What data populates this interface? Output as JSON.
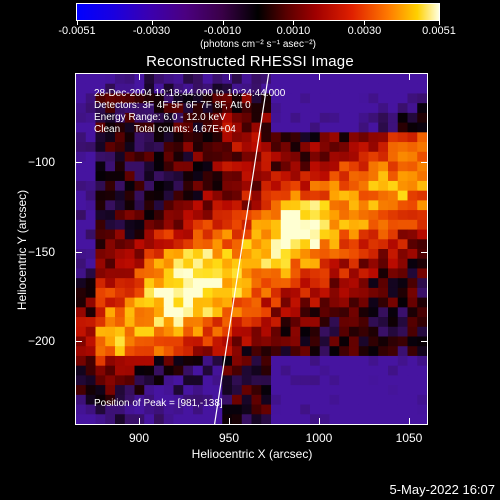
{
  "colorbar": {
    "tick_labels": [
      "-0.0051",
      "-0.0030",
      "-0.0010",
      "0.0010",
      "0.0030",
      "0.0051"
    ],
    "tick_values": [
      -0.0051,
      -0.003,
      -0.001,
      0.001,
      0.003,
      0.0051
    ],
    "units": "(photons cm⁻² s⁻¹ asec⁻²)",
    "colors": {
      "low": "#0000ff",
      "mid": "#000000",
      "high": "#ffffe0"
    }
  },
  "plot": {
    "title": "Reconstructed RHESSI Image",
    "info": {
      "time_range": "28-Dec-2004 10:18:44.000 to 10:24:44.000",
      "detectors": "Detectors: 3F 4F 5F 6F 7F 8F, Att 0",
      "energy_range": "Energy Range: 6.0 - 12.0 keV",
      "algorithm": "Clean     Total counts: 4.67E+04"
    },
    "peak_label": "Position of Peak = [981,-138]"
  },
  "chart_data": {
    "type": "heatmap",
    "title": "Reconstructed RHESSI Image",
    "xlabel": "Heliocentric X (arcsec)",
    "ylabel": "Heliocentric Y (arcsec)",
    "xlim": [
      865,
      1060
    ],
    "ylim": [
      -246,
      -51
    ],
    "x_ticks": [
      900,
      950,
      1000,
      1050
    ],
    "y_ticks": [
      -200,
      -150,
      -100
    ],
    "x_tick_labels": [
      "900",
      "950",
      "1000",
      "1050"
    ],
    "y_tick_labels": [
      "−200",
      "−150",
      "−100"
    ],
    "peak": [
      981,
      -138
    ],
    "limb_line": [
      [
        942,
        -246
      ],
      [
        972,
        -51
      ]
    ]
  },
  "footer": {
    "date": "5-May-2022 16:07"
  }
}
